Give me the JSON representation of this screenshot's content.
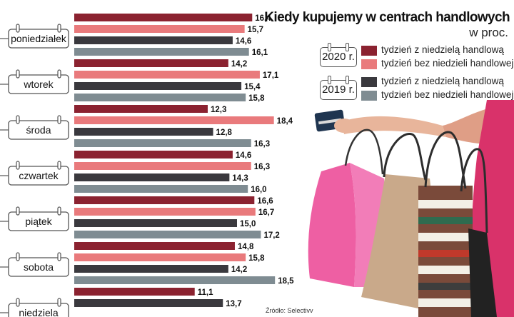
{
  "chart_data": {
    "type": "bar",
    "orientation": "horizontal",
    "title": "Kiedy kupujemy w centrach handlowych",
    "subtitle": "w proc.",
    "categories": [
      "poniedziałek",
      "wtorek",
      "środa",
      "czwartek",
      "piątek",
      "sobota",
      "niedziela"
    ],
    "series": [
      {
        "year": "2020 r.",
        "name": "tydzień z niedzielą handlową",
        "color": "#8b2230",
        "values": [
          16.4,
          14.2,
          12.3,
          14.6,
          16.6,
          14.8,
          11.1
        ]
      },
      {
        "year": "2020 r.",
        "name": "tydzień bez niedzieli handlowej",
        "color": "#e97a7c",
        "values": [
          15.7,
          17.1,
          18.4,
          16.3,
          16.7,
          15.8,
          null
        ]
      },
      {
        "year": "2019 r.",
        "name": "tydzień z niedzielą handlową",
        "color": "#3a393e",
        "values": [
          14.6,
          15.4,
          12.8,
          14.3,
          15.0,
          14.2,
          13.7
        ]
      },
      {
        "year": "2019 r.",
        "name": "tydzień bez niedzieli handlowej",
        "color": "#7f8c92",
        "values": [
          16.1,
          15.8,
          16.3,
          16.0,
          17.2,
          18.5,
          null
        ]
      }
    ],
    "value_labels": [
      [
        "16,4",
        "15,7",
        "14,6",
        "16,1"
      ],
      [
        "14,2",
        "17,1",
        "15,4",
        "15,8"
      ],
      [
        "12,3",
        "18,4",
        "12,8",
        "16,3"
      ],
      [
        "14,6",
        "16,3",
        "14,3",
        "16,0"
      ],
      [
        "16,6",
        "16,7",
        "15,0",
        "17,2"
      ],
      [
        "14,8",
        "15,8",
        "14,2",
        "18,5"
      ],
      [
        "11,1",
        null,
        "13,7",
        null
      ]
    ],
    "xlim": [
      0,
      18.5
    ],
    "grid": false,
    "legend_position": "top-right"
  },
  "legend": {
    "groups": [
      {
        "year": "2020 r.",
        "items": [
          {
            "label": "tydzień z niedzielą handlową",
            "color": "#8b2230"
          },
          {
            "label": "tydzień bez niedzieli handlowej",
            "color": "#e97a7c"
          }
        ]
      },
      {
        "year": "2019 r.",
        "items": [
          {
            "label": "tydzień z niedzielą handlową",
            "color": "#3a393e"
          },
          {
            "label": "tydzień bez niedzieli handlowej",
            "color": "#7f8c92"
          }
        ]
      }
    ]
  },
  "source": "Źródło: Selectivv",
  "colors": {
    "bag_pink": "#ee5fa3",
    "bag_kraft": "#c9a98a",
    "bag_striped": "#7a4a3a",
    "skin": "#e8b59b",
    "card": "#1f3550"
  }
}
